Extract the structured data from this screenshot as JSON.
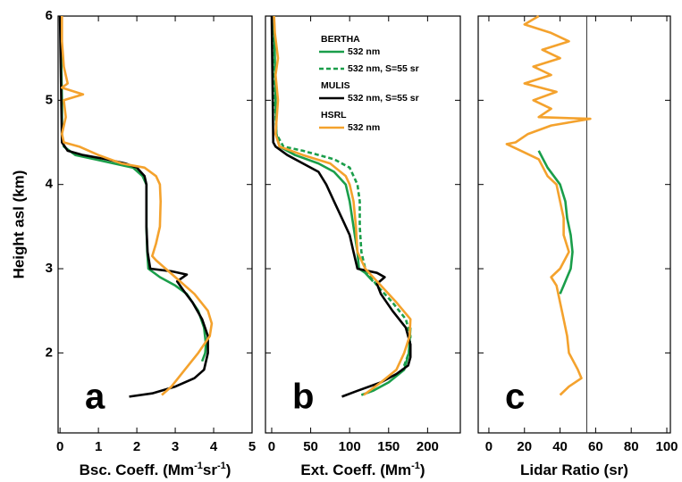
{
  "chart_data": [
    {
      "type": "line",
      "panel_label": "a",
      "ylabel": "Height asl (km)",
      "xlabel_parts": [
        {
          "text": "Bsc. Coeff. (Mm"
        },
        {
          "text": "-1",
          "sup": true
        },
        {
          "text": "sr"
        },
        {
          "text": "-1",
          "sup": true
        },
        {
          "text": ")"
        }
      ],
      "xlim": [
        -0.05,
        5
      ],
      "xticks": [
        0,
        1,
        2,
        3,
        4,
        5
      ],
      "ylim": [
        1.05,
        6
      ],
      "yticks": [
        2,
        3,
        4,
        5,
        6
      ],
      "ytick_labels": true,
      "series": [
        {
          "color": "#1a9e4a",
          "x": [
            0.02,
            0.03,
            0.05,
            0.05,
            0.1,
            0.4,
            0.9,
            1.4,
            1.9,
            2.15,
            2.25,
            2.25,
            2.25,
            2.27,
            2.3,
            2.6,
            3.0,
            3.3,
            3.6,
            3.75,
            3.8,
            3.78,
            3.7
          ],
          "values": [
            6.0,
            5.5,
            5.0,
            4.6,
            4.45,
            4.35,
            4.3,
            4.25,
            4.2,
            4.1,
            4.0,
            3.8,
            3.5,
            3.2,
            3.0,
            2.9,
            2.8,
            2.7,
            2.5,
            2.3,
            2.1,
            2.0,
            1.9
          ]
        },
        {
          "color": "#000000",
          "x": [
            0,
            0.05,
            0.2,
            0.6,
            1.2,
            1.7,
            2.0,
            2.2,
            2.25,
            2.25,
            2.28,
            2.35,
            2.9,
            3.3,
            3.05,
            3.2,
            3.45,
            3.7,
            3.85,
            3.85,
            3.75,
            3.5,
            3.0,
            2.4,
            1.8
          ],
          "values": [
            6.0,
            4.5,
            4.4,
            4.35,
            4.3,
            4.25,
            4.2,
            4.1,
            4.0,
            3.5,
            3.2,
            3.0,
            2.97,
            2.93,
            2.85,
            2.75,
            2.6,
            2.4,
            2.2,
            2.0,
            1.8,
            1.7,
            1.6,
            1.52,
            1.48
          ]
        },
        {
          "color": "#f4a22d",
          "x": [
            0.05,
            0.05,
            0.1,
            0.2,
            0.05,
            0.6,
            0.1,
            0.15,
            0.05,
            0.1,
            0.5,
            1.0,
            1.6,
            2.2,
            2.5,
            2.6,
            2.62,
            2.6,
            2.5,
            2.4,
            2.5,
            3.0,
            3.5,
            3.85,
            3.95,
            3.9,
            3.6,
            3.25,
            2.9,
            2.65
          ],
          "values": [
            6.0,
            5.7,
            5.4,
            5.2,
            5.15,
            5.07,
            5.0,
            4.8,
            4.6,
            4.5,
            4.45,
            4.35,
            4.25,
            4.2,
            4.1,
            4.0,
            3.8,
            3.5,
            3.3,
            3.15,
            3.1,
            2.9,
            2.7,
            2.5,
            2.35,
            2.2,
            2.0,
            1.8,
            1.6,
            1.5
          ]
        }
      ]
    },
    {
      "type": "line",
      "panel_label": "b",
      "xlabel_parts": [
        {
          "text": "Ext. Coeff. (Mm"
        },
        {
          "text": "-1",
          "sup": true
        },
        {
          "text": ")"
        }
      ],
      "xlim": [
        -8,
        242
      ],
      "xticks": [
        0,
        50,
        100,
        150,
        200
      ],
      "ylim": [
        1.05,
        6
      ],
      "yticks": [
        2,
        3,
        4,
        5,
        6
      ],
      "ytick_labels": false,
      "series": [
        {
          "group": "BERTHA",
          "name": "532 nm",
          "color": "#1a9e4a",
          "x": [
            3,
            5,
            6,
            10,
            30,
            60,
            80,
            95,
            100,
            105,
            110,
            112,
            120,
            130,
            null,
            178,
            176,
            170,
            150,
            130,
            115
          ],
          "values": [
            6.0,
            5.0,
            4.6,
            4.45,
            4.35,
            4.25,
            4.15,
            4.0,
            3.8,
            3.5,
            3.2,
            3.0,
            2.95,
            2.85,
            null,
            2.3,
            2.0,
            1.8,
            1.65,
            1.55,
            1.5
          ]
        },
        {
          "name": "532 nm, S=55 sr",
          "color": "#1a9e4a",
          "dashed": true,
          "x": [
            3,
            4,
            6,
            15,
            40,
            80,
            100,
            110,
            113,
            113,
            115,
            120,
            135,
            155,
            172,
            178,
            176,
            168
          ],
          "values": [
            6.0,
            5.0,
            4.6,
            4.45,
            4.4,
            4.3,
            4.2,
            4.0,
            3.8,
            3.5,
            3.2,
            3.0,
            2.8,
            2.6,
            2.4,
            2.2,
            2.0,
            1.8
          ]
        },
        {
          "group": "MULIS",
          "name": "532 nm, S=55 sr",
          "color": "#000000",
          "x": [
            0,
            2,
            5,
            20,
            40,
            60,
            70,
            80,
            90,
            100,
            105,
            110,
            135,
            145,
            135,
            140,
            155,
            172,
            178,
            178,
            175,
            160,
            140,
            110,
            90
          ],
          "values": [
            6.0,
            4.5,
            4.45,
            4.35,
            4.25,
            4.15,
            4.0,
            3.8,
            3.6,
            3.4,
            3.2,
            3.0,
            2.95,
            2.9,
            2.82,
            2.7,
            2.5,
            2.3,
            2.1,
            1.95,
            1.85,
            1.75,
            1.65,
            1.55,
            1.48
          ]
        },
        {
          "group": "HSRL",
          "name": "532 nm",
          "color": "#f4a22d",
          "x": [
            3,
            4,
            8,
            5,
            8,
            5,
            10,
            40,
            75,
            95,
            100,
            105,
            108,
            110,
            120,
            140,
            160,
            178,
            177,
            170,
            160,
            140,
            118
          ],
          "values": [
            6.0,
            5.8,
            5.5,
            5.3,
            5.0,
            4.6,
            4.45,
            4.35,
            4.25,
            4.1,
            4.0,
            3.8,
            3.5,
            3.2,
            3.0,
            2.8,
            2.6,
            2.4,
            2.2,
            2.0,
            1.8,
            1.65,
            1.5
          ]
        }
      ]
    },
    {
      "type": "line",
      "panel_label": "c",
      "xlabel_parts": [
        {
          "text": "Lidar Ratio (sr)"
        }
      ],
      "xlim": [
        -6,
        102
      ],
      "xticks": [
        0,
        20,
        40,
        60,
        80,
        100
      ],
      "ylim": [
        1.05,
        6
      ],
      "yticks": [
        2,
        3,
        4,
        5,
        6
      ],
      "ytick_labels": false,
      "reference_x": 55,
      "series": [
        {
          "color": "#f4a22d",
          "x": [
            28,
            20,
            35,
            45,
            30,
            40,
            25,
            35,
            20,
            38,
            25,
            35,
            28,
            57,
            35,
            22,
            15,
            10,
            18,
            28,
            33,
            38,
            40,
            42,
            42,
            45,
            40,
            35,
            38,
            40,
            42,
            44,
            45,
            50,
            52,
            45,
            40
          ],
          "values": [
            6.0,
            5.9,
            5.8,
            5.7,
            5.6,
            5.5,
            5.4,
            5.3,
            5.2,
            5.1,
            5.0,
            4.9,
            4.8,
            4.78,
            4.7,
            4.6,
            4.5,
            4.48,
            4.4,
            4.3,
            4.1,
            4.0,
            3.8,
            3.6,
            3.4,
            3.2,
            3.0,
            2.9,
            2.8,
            2.6,
            2.4,
            2.2,
            2.0,
            1.8,
            1.7,
            1.6,
            1.5
          ]
        },
        {
          "color": "#1a9e4a",
          "x": [
            28,
            33,
            40,
            43,
            44,
            46,
            47,
            46,
            44,
            42,
            40
          ],
          "values": [
            4.4,
            4.2,
            4.0,
            3.8,
            3.6,
            3.4,
            3.2,
            3.0,
            2.9,
            2.8,
            2.7
          ]
        }
      ]
    }
  ]
}
